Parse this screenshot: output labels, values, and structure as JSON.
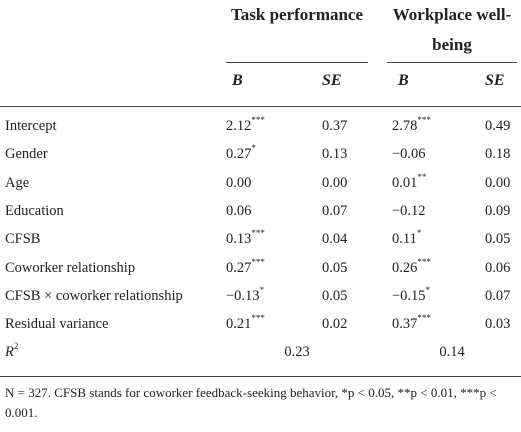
{
  "table": {
    "groups": [
      "Task performance",
      "Workplace well-being"
    ],
    "subheaders": [
      "B",
      "SE",
      "B",
      "SE"
    ],
    "rows": [
      {
        "label": "Intercept",
        "cells": [
          {
            "value": "2.12",
            "sig": "***"
          },
          {
            "value": "0.37"
          },
          {
            "value": "2.78",
            "sig": "***"
          },
          {
            "value": "0.49"
          }
        ]
      },
      {
        "label": "Gender",
        "cells": [
          {
            "value": "0.27",
            "sig": "*"
          },
          {
            "value": "0.13"
          },
          {
            "value": "−0.06"
          },
          {
            "value": "0.18"
          }
        ]
      },
      {
        "label": "Age",
        "cells": [
          {
            "value": "0.00"
          },
          {
            "value": "0.00"
          },
          {
            "value": "0.01",
            "sig": "**"
          },
          {
            "value": "0.00"
          }
        ]
      },
      {
        "label": "Education",
        "cells": [
          {
            "value": "0.06"
          },
          {
            "value": "0.07"
          },
          {
            "value": "−0.12"
          },
          {
            "value": "0.09"
          }
        ]
      },
      {
        "label": "CFSB",
        "cells": [
          {
            "value": "0.13",
            "sig": "***"
          },
          {
            "value": "0.04"
          },
          {
            "value": "0.11",
            "sig": "*"
          },
          {
            "value": "0.05"
          }
        ]
      },
      {
        "label": "Coworker relationship",
        "cells": [
          {
            "value": "0.27",
            "sig": "***"
          },
          {
            "value": "0.05"
          },
          {
            "value": "0.26",
            "sig": "***"
          },
          {
            "value": "0.06"
          }
        ]
      },
      {
        "label": "CFSB × coworker relationship",
        "cells": [
          {
            "value": "−0.13",
            "sig": "*"
          },
          {
            "value": "0.05"
          },
          {
            "value": "−0.15",
            "sig": "*"
          },
          {
            "value": "0.07"
          }
        ]
      },
      {
        "label": "Residual variance",
        "cells": [
          {
            "value": "0.21",
            "sig": "***"
          },
          {
            "value": "0.02"
          },
          {
            "value": "0.37",
            "sig": "***"
          },
          {
            "value": "0.03"
          }
        ]
      }
    ],
    "r2": {
      "label": "R",
      "sup": "2",
      "values": [
        "0.23",
        "0.14"
      ]
    },
    "footnote": "N = 327. CFSB stands for coworker feedback-seeking behavior, *p < 0.05, **p < 0.01, ***p < 0.001."
  }
}
